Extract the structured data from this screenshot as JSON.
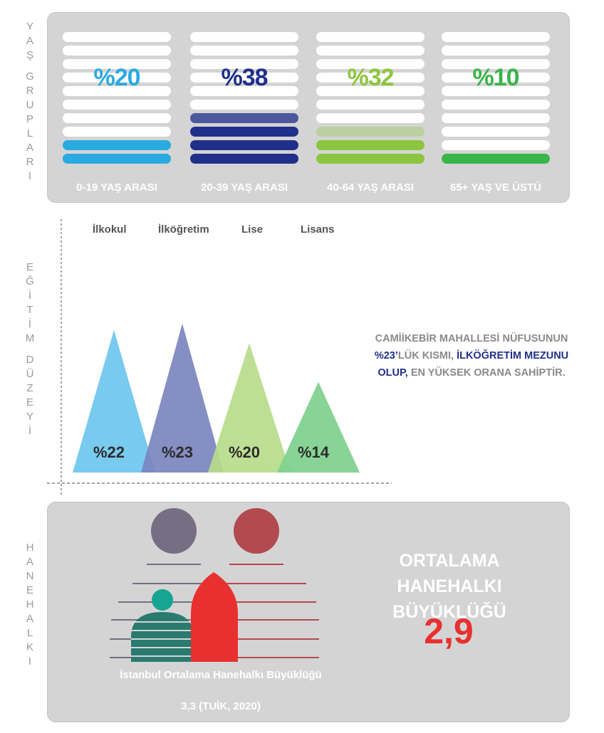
{
  "side_labels": {
    "age": [
      "Y",
      "A",
      "Ş",
      "G",
      "R",
      "U",
      "P",
      "L",
      "A",
      "R",
      "I"
    ],
    "education": [
      "E",
      "Ğ",
      "İ",
      "T",
      "İ",
      "M",
      "D",
      "Ü",
      "Z",
      "E",
      "Y",
      "İ"
    ],
    "household": [
      "H",
      "A",
      "N",
      "E",
      "H",
      "A",
      "L",
      "K",
      "I"
    ]
  },
  "chart_data": [
    {
      "type": "bar",
      "title": "",
      "categories": [
        "0-19 YAŞ ARASI",
        "20-39 YAŞ ARASI",
        "40-64 YAŞ ARASI",
        "65+ YAŞ VE ÜSTÜ"
      ],
      "values": [
        20,
        38,
        32,
        10
      ],
      "value_labels": [
        "%20",
        "%38",
        "%32",
        "%10"
      ],
      "colors": [
        "#29aae1",
        "#1f2f8a",
        "#8cc63e",
        "#39b54a"
      ],
      "ylim": [
        0,
        100
      ]
    },
    {
      "type": "area",
      "title": "",
      "categories": [
        "İlkokul",
        "İlköğretim",
        "Lise",
        "Lisans"
      ],
      "values": [
        22,
        23,
        20,
        14
      ],
      "value_labels": [
        "%22",
        "%23",
        "%20",
        "%14"
      ],
      "colors": [
        "#6cc6ee",
        "#7b85bf",
        "#b7dc8a",
        "#7ed08d"
      ]
    }
  ],
  "education_callout": {
    "line1": "CAMİİKEBİR MAHALLESİ NÜFUSUNUN",
    "pct": "%23’",
    "mid": "LÜK KISMI, ",
    "highlight1": "İLKÖĞRETİM MEZUNU",
    "highlight2": "OLUP,",
    "end": " EN YÜKSEK ORANA SAHİPTİR."
  },
  "household": {
    "title_line1": "ORTALAMA HANEHALKI",
    "title_line2": "BÜYÜKLÜĞÜ",
    "value": "2,9",
    "istanbul_label": "İstanbul Ortalama Hanehalkı Büyüklüğü",
    "istanbul_value": "3,3 (TUİK, 2020)"
  }
}
